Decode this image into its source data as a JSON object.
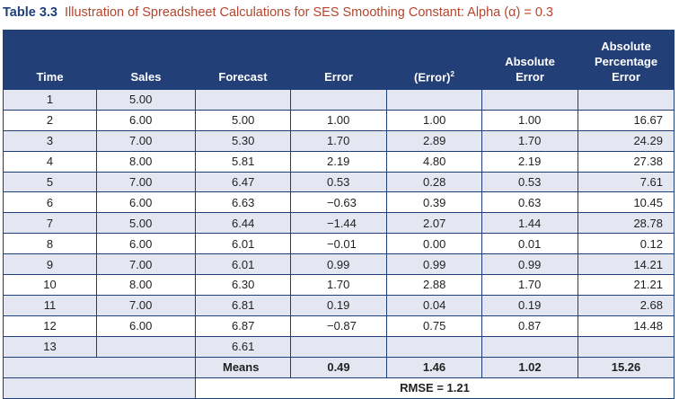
{
  "caption": {
    "number": "Table 3.3",
    "title": "Illustration of Spreadsheet Calculations for SES Smoothing Constant: Alpha (α) = 0.3"
  },
  "headers": {
    "time": "Time",
    "sales": "Sales",
    "forecast": "Forecast",
    "error": "Error",
    "error_sq": "(Error)",
    "error_sq_sup": "2",
    "abs_error_1": "Absolute",
    "abs_error_2": "Error",
    "ape_1": "Absolute",
    "ape_2": "Percentage",
    "ape_3": "Error"
  },
  "rows": [
    {
      "time": "1",
      "sales": "5.00",
      "forecast": "",
      "error": "",
      "error_sq": "",
      "abs_error": "",
      "ape": ""
    },
    {
      "time": "2",
      "sales": "6.00",
      "forecast": "5.00",
      "error": "1.00",
      "error_sq": "1.00",
      "abs_error": "1.00",
      "ape": "16.67"
    },
    {
      "time": "3",
      "sales": "7.00",
      "forecast": "5.30",
      "error": "1.70",
      "error_sq": "2.89",
      "abs_error": "1.70",
      "ape": "24.29"
    },
    {
      "time": "4",
      "sales": "8.00",
      "forecast": "5.81",
      "error": "2.19",
      "error_sq": "4.80",
      "abs_error": "2.19",
      "ape": "27.38"
    },
    {
      "time": "5",
      "sales": "7.00",
      "forecast": "6.47",
      "error": "0.53",
      "error_sq": "0.28",
      "abs_error": "0.53",
      "ape": "7.61"
    },
    {
      "time": "6",
      "sales": "6.00",
      "forecast": "6.63",
      "error": "−0.63",
      "error_sq": "0.39",
      "abs_error": "0.63",
      "ape": "10.45"
    },
    {
      "time": "7",
      "sales": "5.00",
      "forecast": "6.44",
      "error": "−1.44",
      "error_sq": "2.07",
      "abs_error": "1.44",
      "ape": "28.78"
    },
    {
      "time": "8",
      "sales": "6.00",
      "forecast": "6.01",
      "error": "−0.01",
      "error_sq": "0.00",
      "abs_error": "0.01",
      "ape": "0.12"
    },
    {
      "time": "9",
      "sales": "7.00",
      "forecast": "6.01",
      "error": "0.99",
      "error_sq": "0.99",
      "abs_error": "0.99",
      "ape": "14.21"
    },
    {
      "time": "10",
      "sales": "8.00",
      "forecast": "6.30",
      "error": "1.70",
      "error_sq": "2.88",
      "abs_error": "1.70",
      "ape": "21.21"
    },
    {
      "time": "11",
      "sales": "7.00",
      "forecast": "6.81",
      "error": "0.19",
      "error_sq": "0.04",
      "abs_error": "0.19",
      "ape": "2.68"
    },
    {
      "time": "12",
      "sales": "6.00",
      "forecast": "6.87",
      "error": "−0.87",
      "error_sq": "0.75",
      "abs_error": "0.87",
      "ape": "14.48"
    },
    {
      "time": "13",
      "sales": "",
      "forecast": "6.61",
      "error": "",
      "error_sq": "",
      "abs_error": "",
      "ape": ""
    }
  ],
  "means": {
    "label": "Means",
    "error": "0.49",
    "error_sq": "1.46",
    "abs_error": "1.02",
    "ape": "15.26"
  },
  "rmse": "RMSE = 1.21"
}
